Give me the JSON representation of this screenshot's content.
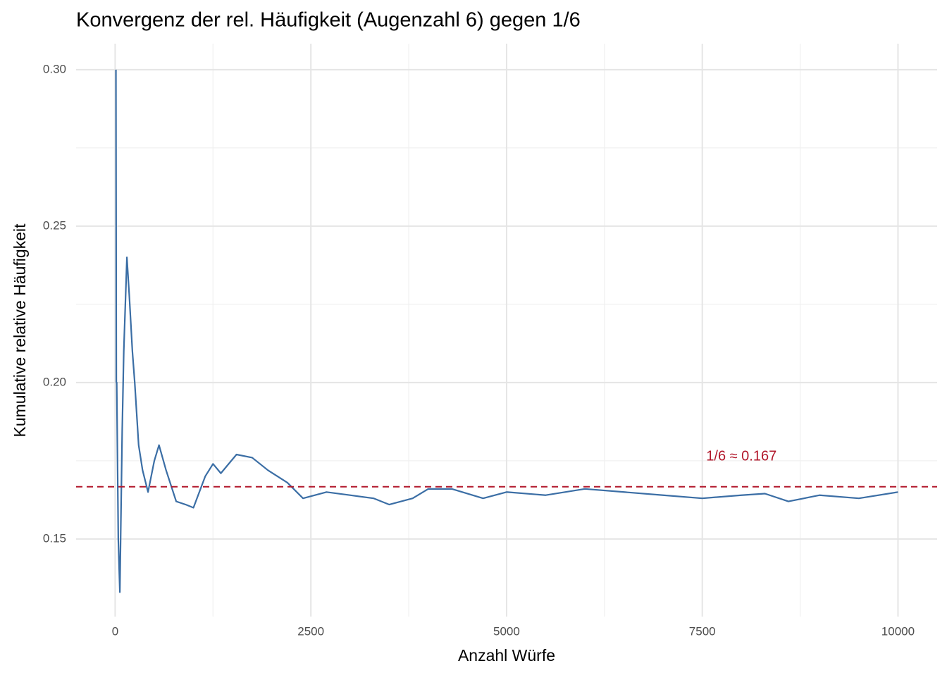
{
  "chart_data": {
    "type": "line",
    "title": "Konvergenz der rel. Häufigkeit (Augenzahl 6) gegen 1/6",
    "x_label": "Anzahl Würfe",
    "y_label": "Kumulative relative Häufigkeit",
    "x": [
      10,
      15,
      20,
      40,
      60,
      90,
      110,
      150,
      180,
      220,
      250,
      300,
      350,
      420,
      500,
      560,
      650,
      780,
      900,
      1000,
      1150,
      1250,
      1350,
      1550,
      1750,
      1950,
      2200,
      2400,
      2700,
      3000,
      3300,
      3500,
      3800,
      4000,
      4300,
      4700,
      5000,
      5500,
      6000,
      6500,
      7000,
      7500,
      8000,
      8300,
      8600,
      9000,
      9500,
      10000
    ],
    "series": [
      {
        "name": "Kumulative relative Häufigkeit",
        "color": "#3b6ea5",
        "values": [
          0.3,
          0.2,
          0.2,
          0.15,
          0.133,
          0.185,
          0.21,
          0.24,
          0.228,
          0.21,
          0.2,
          0.18,
          0.172,
          0.165,
          0.175,
          0.18,
          0.172,
          0.162,
          0.161,
          0.16,
          0.17,
          0.174,
          0.171,
          0.177,
          0.176,
          0.172,
          0.168,
          0.163,
          0.165,
          0.164,
          0.163,
          0.161,
          0.163,
          0.166,
          0.166,
          0.163,
          0.165,
          0.164,
          0.166,
          0.165,
          0.164,
          0.163,
          0.164,
          0.1645,
          0.162,
          0.164,
          0.163,
          0.165
        ]
      }
    ],
    "reference_line": {
      "value": 0.1667,
      "color": "#b2182b",
      "label": "1/6 ≈ 0.167",
      "label_x": 8000,
      "label_y": 0.1763
    },
    "xlim": [
      -499,
      10500
    ],
    "ylim": [
      0.1252,
      0.3083
    ],
    "xticks": [
      0,
      2500,
      5000,
      7500,
      10000
    ],
    "yticks": [
      0.15,
      {
        "value": 0.2,
        "label": "0.20"
      },
      0.25,
      {
        "value": 0.3,
        "label": "0.30"
      }
    ],
    "minor_xticks": [
      1250,
      3750,
      6250,
      8750
    ],
    "minor_yticks": [
      0.175,
      0.225,
      0.275
    ],
    "grid": true
  }
}
